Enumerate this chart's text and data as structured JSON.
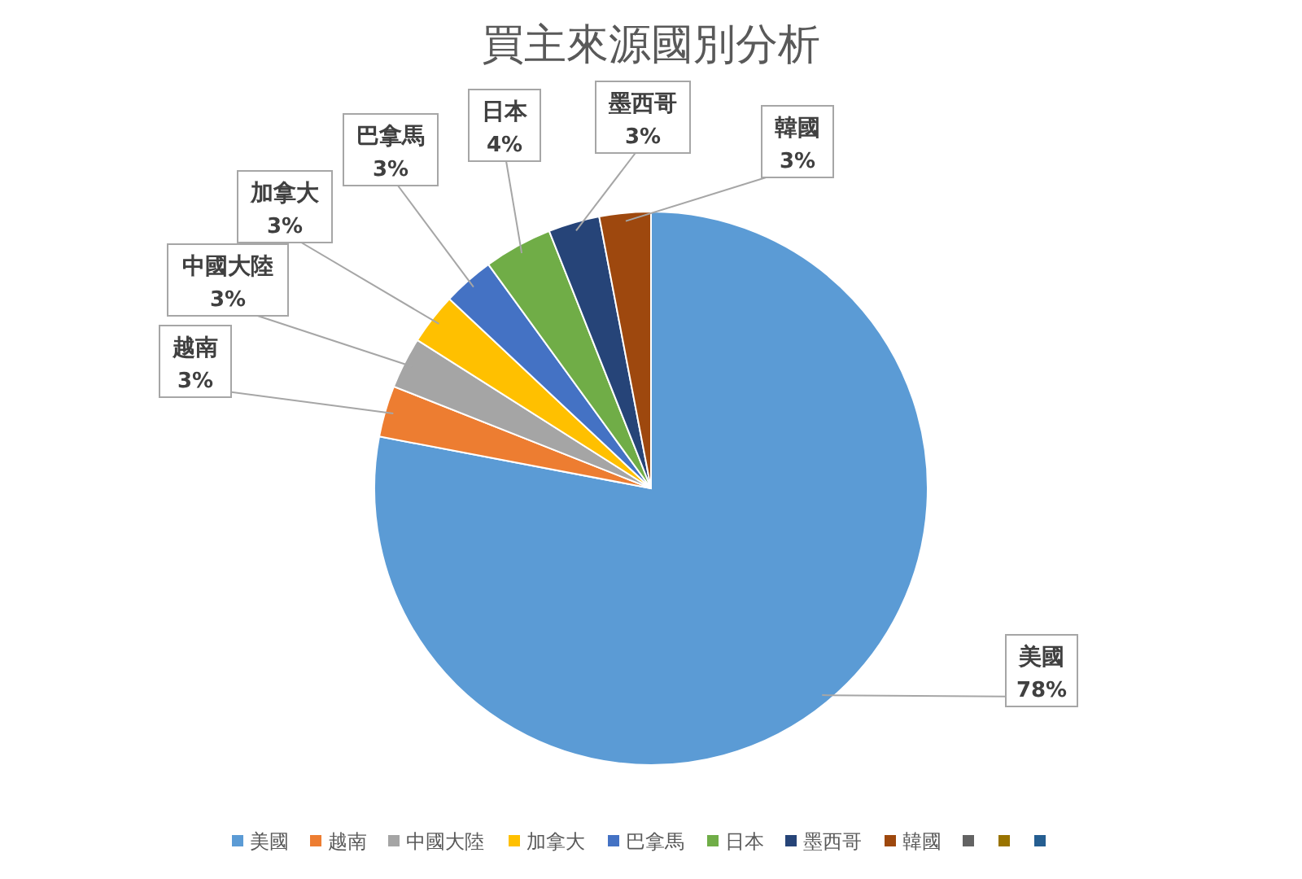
{
  "chart_data": {
    "type": "pie",
    "title": "買主來源國別分析",
    "categories": [
      "美國",
      "越南",
      "中國大陸",
      "加拿大",
      "巴拿馬",
      "日本",
      "墨西哥",
      "韓國",
      null,
      null,
      null
    ],
    "values": [
      78,
      3,
      3,
      3,
      3,
      4,
      3,
      3,
      0,
      0,
      0
    ],
    "colors": [
      "#5b9bd5",
      "#ed7d31",
      "#a5a5a5",
      "#ffc000",
      "#4472c4",
      "#70ad47",
      "#264478",
      "#9e480e",
      "#636363",
      "#997300",
      "#255e91"
    ],
    "value_labels": [
      "78%",
      "3%",
      "3%",
      "3%",
      "3%",
      "4%",
      "3%",
      "3%",
      null,
      null,
      null
    ],
    "legend": "bottom"
  }
}
